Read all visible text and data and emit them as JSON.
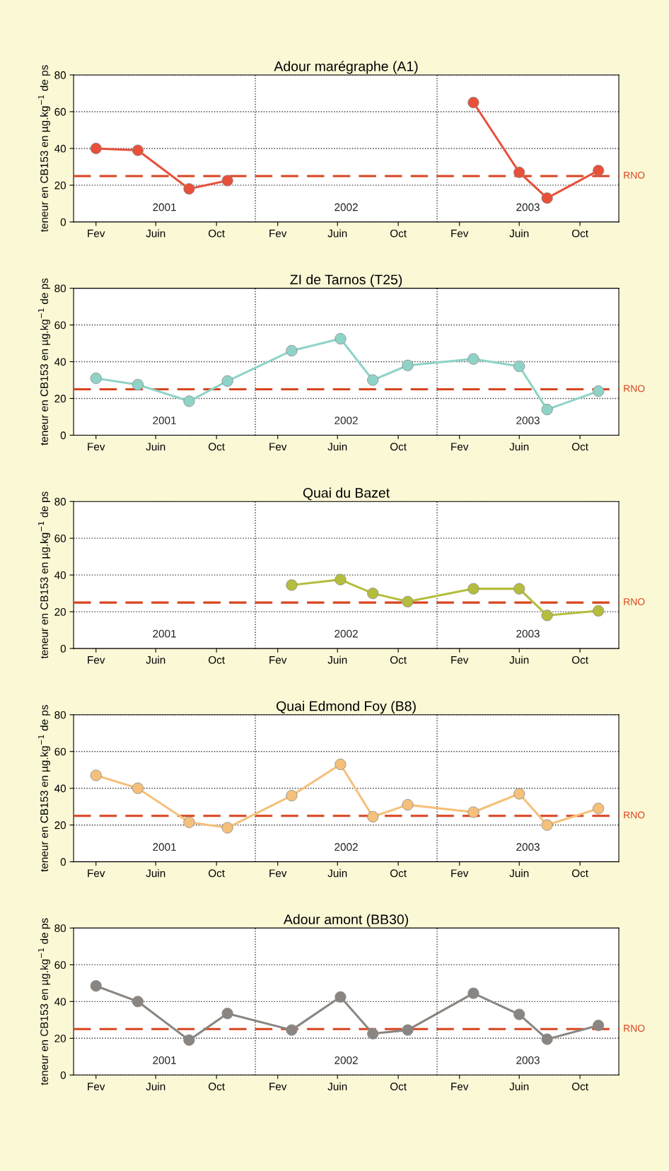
{
  "chart_data": [
    {
      "type": "line",
      "title": "Adour marégraphe (A1)",
      "ylabel": "teneur en CB153 en µg.kg$^{−1}$ de ps",
      "series": [
        {
          "color": "#e8503a",
          "x": [
            "2001-02-15",
            "2001-05-10",
            "2001-08-21",
            "2001-11-06"
          ],
          "values": [
            40,
            39,
            18,
            22.5
          ]
        },
        {
          "color": "#e8503a",
          "x": [
            "2003-03-15",
            "2003-06-15",
            "2003-08-10",
            "2003-11-21"
          ],
          "values": [
            65,
            27,
            13,
            28
          ]
        }
      ],
      "xlim": [
        "2001-01-01",
        "2004-01-01"
      ],
      "ylim": [
        0,
        80
      ],
      "yticks": [
        0,
        20,
        40,
        60,
        80
      ],
      "xticks": [
        {
          "value": "2001-02-15",
          "label": "Fev"
        },
        {
          "value": "2001-06-15",
          "label": "Juin"
        },
        {
          "value": "2001-10-15",
          "label": "Oct"
        },
        {
          "value": "2002-02-15",
          "label": "Fev"
        },
        {
          "value": "2002-06-15",
          "label": "Juin"
        },
        {
          "value": "2002-10-15",
          "label": "Oct"
        },
        {
          "value": "2003-02-15",
          "label": "Fev"
        },
        {
          "value": "2003-06-15",
          "label": "Juin"
        },
        {
          "value": "2003-10-15",
          "label": "Oct"
        }
      ],
      "grid": "y",
      "marker": "circle",
      "line_style": "solid",
      "ref_lines": [
        {
          "axis": "y",
          "value": 25,
          "label": "RNO",
          "color": "#d9441f",
          "line_style": "dashed"
        },
        {
          "axis": "x",
          "value": "2002-01-01",
          "color": "#333333",
          "line_style": "dotted"
        },
        {
          "axis": "x",
          "value": "2003-01-01",
          "color": "#333333",
          "line_style": "dotted"
        }
      ],
      "annotations": [
        "2001",
        "2002",
        "2003"
      ]
    },
    {
      "type": "line",
      "title": "ZI de Tarnos (T25)",
      "ylabel": "teneur en CB153 en µg.kg$^{−1}$ de ps",
      "x": [
        "2001-02-15",
        "2001-05-10",
        "2001-08-21",
        "2001-11-06",
        "2002-03-15",
        "2002-06-21",
        "2002-08-25",
        "2002-11-03",
        "2003-03-15",
        "2003-06-15",
        "2003-08-10",
        "2003-11-21"
      ],
      "series": [
        {
          "color": "#8fd3c8",
          "values": [
            31,
            27.5,
            18.5,
            29.5,
            46,
            52.5,
            30,
            38,
            41.5,
            37.5,
            14,
            24
          ]
        }
      ],
      "xlim": [
        "2001-01-01",
        "2004-01-01"
      ],
      "ylim": [
        0,
        80
      ],
      "yticks": [
        0,
        20,
        40,
        60,
        80
      ],
      "xticks": [
        {
          "value": "2001-02-15",
          "label": "Fev"
        },
        {
          "value": "2001-06-15",
          "label": "Juin"
        },
        {
          "value": "2001-10-15",
          "label": "Oct"
        },
        {
          "value": "2002-02-15",
          "label": "Fev"
        },
        {
          "value": "2002-06-15",
          "label": "Juin"
        },
        {
          "value": "2002-10-15",
          "label": "Oct"
        },
        {
          "value": "2003-02-15",
          "label": "Fev"
        },
        {
          "value": "2003-06-15",
          "label": "Juin"
        },
        {
          "value": "2003-10-15",
          "label": "Oct"
        }
      ],
      "grid": "y",
      "marker": "circle",
      "line_style": "solid",
      "ref_lines": [
        {
          "axis": "y",
          "value": 25,
          "label": "RNO",
          "color": "#d9441f",
          "line_style": "dashed"
        },
        {
          "axis": "x",
          "value": "2002-01-01",
          "color": "#333333",
          "line_style": "dotted"
        },
        {
          "axis": "x",
          "value": "2003-01-01",
          "color": "#333333",
          "line_style": "dotted"
        }
      ],
      "annotations": [
        "2001",
        "2002",
        "2003"
      ]
    },
    {
      "type": "line",
      "title": "Quai du Bazet",
      "ylabel": "teneur en CB153 en µg.kg$^{−1}$ de ps",
      "x": [
        "2002-03-15",
        "2002-06-21",
        "2002-08-25",
        "2002-11-03",
        "2003-03-15",
        "2003-06-15",
        "2003-08-10",
        "2003-11-21"
      ],
      "series": [
        {
          "color": "#b5bd3c",
          "values": [
            34.5,
            37.5,
            30,
            25.5,
            32.5,
            32.5,
            18,
            20.5
          ]
        }
      ],
      "xlim": [
        "2001-01-01",
        "2004-01-01"
      ],
      "ylim": [
        0,
        80
      ],
      "yticks": [
        0,
        20,
        40,
        60,
        80
      ],
      "xticks": [
        {
          "value": "2001-02-15",
          "label": "Fev"
        },
        {
          "value": "2001-06-15",
          "label": "Juin"
        },
        {
          "value": "2001-10-15",
          "label": "Oct"
        },
        {
          "value": "2002-02-15",
          "label": "Fev"
        },
        {
          "value": "2002-06-15",
          "label": "Juin"
        },
        {
          "value": "2002-10-15",
          "label": "Oct"
        },
        {
          "value": "2003-02-15",
          "label": "Fev"
        },
        {
          "value": "2003-06-15",
          "label": "Juin"
        },
        {
          "value": "2003-10-15",
          "label": "Oct"
        }
      ],
      "grid": "y",
      "marker": "circle",
      "line_style": "solid",
      "ref_lines": [
        {
          "axis": "y",
          "value": 25,
          "label": "RNO",
          "color": "#d9441f",
          "line_style": "dashed"
        },
        {
          "axis": "x",
          "value": "2002-01-01",
          "color": "#333333",
          "line_style": "dotted"
        },
        {
          "axis": "x",
          "value": "2003-01-01",
          "color": "#333333",
          "line_style": "dotted"
        }
      ],
      "annotations": [
        "2001",
        "2002",
        "2003"
      ]
    },
    {
      "type": "line",
      "title": "Quai Edmond Foy (B8)",
      "ylabel": "teneur en CB153 en µg.kg$^{−1}$ de ps",
      "x": [
        "2001-02-15",
        "2001-05-10",
        "2001-08-21",
        "2001-11-06",
        "2002-03-15",
        "2002-06-21",
        "2002-08-25",
        "2002-11-03",
        "2003-03-15",
        "2003-06-15",
        "2003-08-10",
        "2003-11-21"
      ],
      "series": [
        {
          "color": "#f5c07a",
          "values": [
            47,
            40,
            21.5,
            18.5,
            36,
            53,
            24.5,
            31,
            27,
            37,
            20,
            29
          ]
        }
      ],
      "xlim": [
        "2001-01-01",
        "2004-01-01"
      ],
      "ylim": [
        0,
        80
      ],
      "yticks": [
        0,
        20,
        40,
        60,
        80
      ],
      "xticks": [
        {
          "value": "2001-02-15",
          "label": "Fev"
        },
        {
          "value": "2001-06-15",
          "label": "Juin"
        },
        {
          "value": "2001-10-15",
          "label": "Oct"
        },
        {
          "value": "2002-02-15",
          "label": "Fev"
        },
        {
          "value": "2002-06-15",
          "label": "Juin"
        },
        {
          "value": "2002-10-15",
          "label": "Oct"
        },
        {
          "value": "2003-02-15",
          "label": "Fev"
        },
        {
          "value": "2003-06-15",
          "label": "Juin"
        },
        {
          "value": "2003-10-15",
          "label": "Oct"
        }
      ],
      "grid": "y",
      "marker": "circle",
      "line_style": "solid",
      "ref_lines": [
        {
          "axis": "y",
          "value": 25,
          "label": "RNO",
          "color": "#d9441f",
          "line_style": "dashed"
        },
        {
          "axis": "x",
          "value": "2002-01-01",
          "color": "#333333",
          "line_style": "dotted"
        },
        {
          "axis": "x",
          "value": "2003-01-01",
          "color": "#333333",
          "line_style": "dotted"
        }
      ],
      "annotations": [
        "2001",
        "2002",
        "2003"
      ]
    },
    {
      "type": "line",
      "title": "Adour amont (BB30)",
      "ylabel": "teneur en CB153 en µg.kg$^{−1}$ de ps",
      "x": [
        "2001-02-15",
        "2001-05-10",
        "2001-08-21",
        "2001-11-06",
        "2002-03-15",
        "2002-06-21",
        "2002-08-25",
        "2002-11-03",
        "2003-03-15",
        "2003-06-15",
        "2003-08-10",
        "2003-11-21"
      ],
      "series": [
        {
          "color": "#8a8580",
          "values": [
            48.5,
            40,
            19,
            33.5,
            24.5,
            42.5,
            22.5,
            24.5,
            44.5,
            33,
            19.5,
            27
          ]
        }
      ],
      "xlim": [
        "2001-01-01",
        "2004-01-01"
      ],
      "ylim": [
        0,
        80
      ],
      "yticks": [
        0,
        20,
        40,
        60,
        80
      ],
      "xticks": [
        {
          "value": "2001-02-15",
          "label": "Fev"
        },
        {
          "value": "2001-06-15",
          "label": "Juin"
        },
        {
          "value": "2001-10-15",
          "label": "Oct"
        },
        {
          "value": "2002-02-15",
          "label": "Fev"
        },
        {
          "value": "2002-06-15",
          "label": "Juin"
        },
        {
          "value": "2002-10-15",
          "label": "Oct"
        },
        {
          "value": "2003-02-15",
          "label": "Fev"
        },
        {
          "value": "2003-06-15",
          "label": "Juin"
        },
        {
          "value": "2003-10-15",
          "label": "Oct"
        }
      ],
      "grid": "y",
      "marker": "circle",
      "line_style": "solid",
      "ref_lines": [
        {
          "axis": "y",
          "value": 25,
          "label": "RNO",
          "color": "#d9441f",
          "line_style": "dashed"
        },
        {
          "axis": "x",
          "value": "2002-01-01",
          "color": "#333333",
          "line_style": "dotted"
        },
        {
          "axis": "x",
          "value": "2003-01-01",
          "color": "#333333",
          "line_style": "dotted"
        }
      ],
      "annotations": [
        "2001",
        "2002",
        "2003"
      ]
    }
  ]
}
